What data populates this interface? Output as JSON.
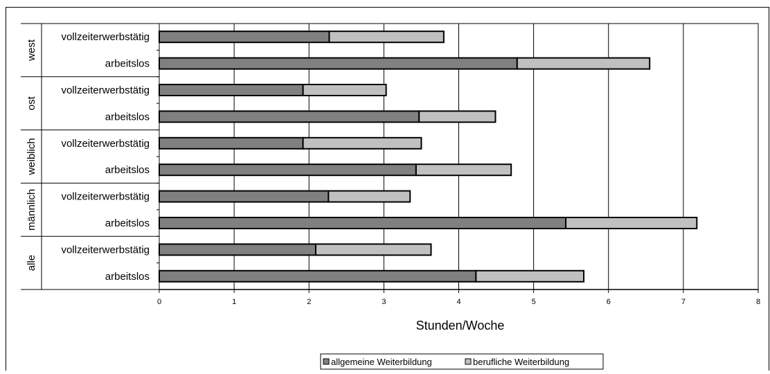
{
  "chart_data": {
    "type": "bar",
    "orientation": "horizontal",
    "stacked": true,
    "groups": [
      {
        "name": "west",
        "rows": [
          {
            "label": "vollzeiterwerbstätig",
            "values": [
              2.27,
              1.53
            ]
          },
          {
            "label": "arbeitslos",
            "values": [
              4.78,
              1.77
            ]
          }
        ]
      },
      {
        "name": "ost",
        "rows": [
          {
            "label": "vollzeiterwerbstätig",
            "values": [
              1.92,
              1.11
            ]
          },
          {
            "label": "arbeitslos",
            "values": [
              3.47,
              1.02
            ]
          }
        ]
      },
      {
        "name": "weiblich",
        "rows": [
          {
            "label": "vollzeiterwerbstätig",
            "values": [
              1.92,
              1.58
            ]
          },
          {
            "label": "arbeitslos",
            "values": [
              3.43,
              1.27
            ]
          }
        ]
      },
      {
        "name": "männlich",
        "rows": [
          {
            "label": "vollzeiterwerbstätig",
            "values": [
              2.26,
              1.09
            ]
          },
          {
            "label": "arbeitslos",
            "values": [
              5.43,
              1.75
            ]
          }
        ]
      },
      {
        "name": "alle",
        "rows": [
          {
            "label": "vollzeiterwerbstätig",
            "values": [
              2.09,
              1.54
            ]
          },
          {
            "label": "arbeitslos",
            "values": [
              4.23,
              1.44
            ]
          }
        ]
      }
    ],
    "series": [
      {
        "name": "allgemeine Weiterbildung",
        "color": "#808080"
      },
      {
        "name": "berufliche Weiterbildung",
        "color": "#c0c0c0"
      }
    ],
    "xlabel": "Stunden/Woche",
    "xlim": [
      0,
      8
    ],
    "xticks": [
      "0",
      "1",
      "2",
      "3",
      "4",
      "5",
      "6",
      "7",
      "8"
    ],
    "grid": true,
    "legend_position": "bottom"
  }
}
